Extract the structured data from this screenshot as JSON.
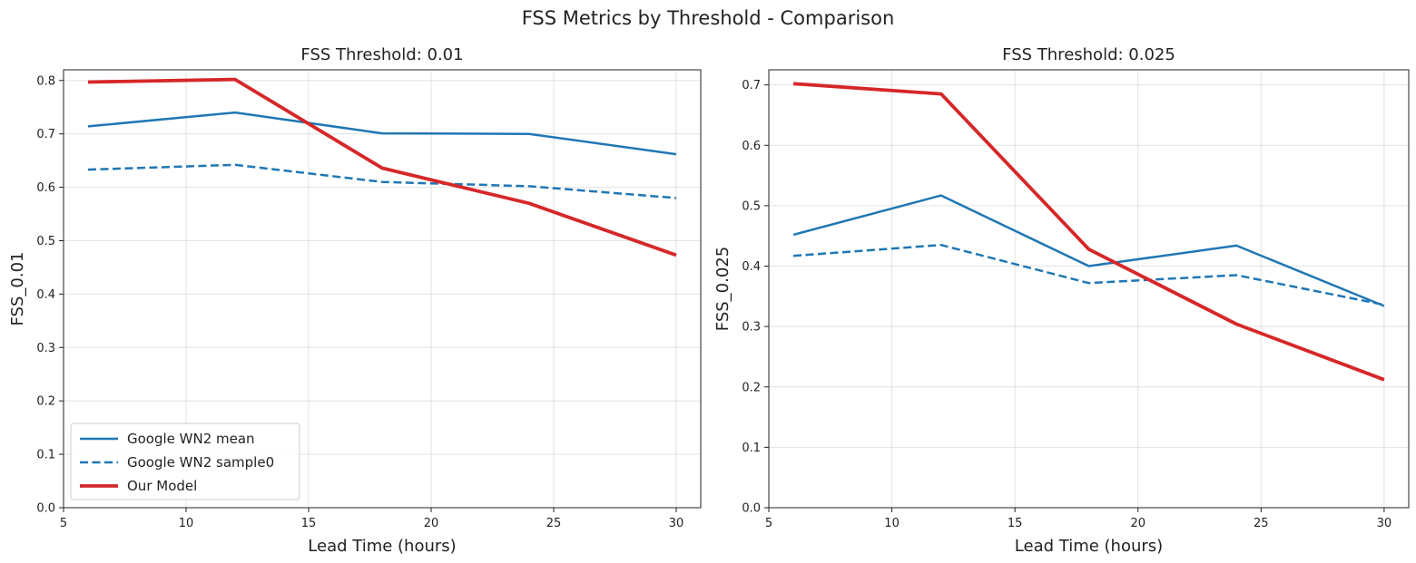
{
  "figure": {
    "suptitle": "FSS Metrics by Threshold - Comparison"
  },
  "chart_data": [
    {
      "type": "line",
      "title": "FSS Threshold: 0.01",
      "xlabel": "Lead Time (hours)",
      "ylabel": "FSS_0.01",
      "x": [
        6,
        12,
        18,
        24,
        30
      ],
      "xlim": [
        5,
        31
      ],
      "ylim": [
        0,
        0.82
      ],
      "xticks": [
        5,
        10,
        15,
        20,
        25,
        30
      ],
      "xtick_labels": [
        "5",
        "10",
        "15",
        "20",
        "25",
        "30"
      ],
      "yticks": [
        0,
        0.1,
        0.2,
        0.3,
        0.4,
        0.5,
        0.6,
        0.7,
        0.8
      ],
      "ytick_labels": [
        "0.0",
        "0.1",
        "0.2",
        "0.3",
        "0.4",
        "0.5",
        "0.6",
        "0.7",
        "0.8"
      ],
      "grid": true,
      "legend": "lower-left",
      "series": [
        {
          "name": "Google WN2 mean",
          "values": [
            0.714,
            0.74,
            0.701,
            0.7,
            0.662
          ],
          "color": "#1f77b4",
          "dash": "solid",
          "width": 2.5
        },
        {
          "name": "Google WN2 sample0",
          "values": [
            0.633,
            0.642,
            0.61,
            0.602,
            0.58
          ],
          "color": "#1f77b4",
          "dash": "dashed",
          "width": 2.5
        },
        {
          "name": "Our Model",
          "values": [
            0.797,
            0.802,
            0.636,
            0.57,
            0.473
          ],
          "color": "#d62728",
          "dash": "solid",
          "width": 3.8
        }
      ]
    },
    {
      "type": "line",
      "title": "FSS Threshold: 0.025",
      "xlabel": "Lead Time (hours)",
      "ylabel": "FSS_0.025",
      "x": [
        6,
        12,
        18,
        24,
        30
      ],
      "xlim": [
        5,
        31
      ],
      "ylim": [
        0,
        0.725
      ],
      "xticks": [
        5,
        10,
        15,
        20,
        25,
        30
      ],
      "xtick_labels": [
        "5",
        "10",
        "15",
        "20",
        "25",
        "30"
      ],
      "yticks": [
        0,
        0.1,
        0.2,
        0.3,
        0.4,
        0.5,
        0.6,
        0.7
      ],
      "ytick_labels": [
        "0.0",
        "0.1",
        "0.2",
        "0.3",
        "0.4",
        "0.5",
        "0.6",
        "0.7"
      ],
      "grid": true,
      "legend": "none",
      "series": [
        {
          "name": "Google WN2 mean",
          "values": [
            0.452,
            0.517,
            0.4,
            0.434,
            0.334
          ],
          "color": "#1f77b4",
          "dash": "solid",
          "width": 2.5
        },
        {
          "name": "Google WN2 sample0",
          "values": [
            0.417,
            0.435,
            0.372,
            0.385,
            0.336
          ],
          "color": "#1f77b4",
          "dash": "dashed",
          "width": 2.5
        },
        {
          "name": "Our Model",
          "values": [
            0.702,
            0.685,
            0.428,
            0.304,
            0.212
          ],
          "color": "#d62728",
          "dash": "solid",
          "width": 3.8
        }
      ]
    }
  ]
}
